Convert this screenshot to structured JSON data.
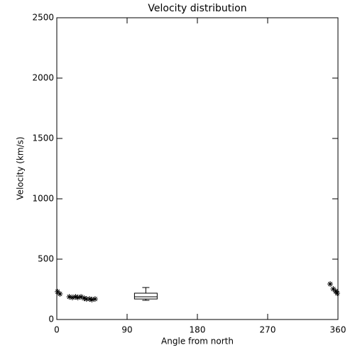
{
  "chart_data": {
    "type": "scatter",
    "title": "Velocity distribution",
    "x_label": "Angle from north",
    "y_label": "Velocity (km/s)",
    "xlim": [
      0,
      360
    ],
    "xticks": [
      0,
      90,
      180,
      270,
      360
    ],
    "ylim": [
      0,
      2500
    ],
    "yticks": [
      0,
      500,
      1000,
      1500,
      2000,
      2500
    ],
    "color": "#000000",
    "series": [
      {
        "x": [
          1,
          4,
          16,
          20,
          24,
          27,
          31,
          35,
          38,
          42,
          45,
          49,
          350,
          354,
          357,
          359
        ],
        "values": [
          230,
          212,
          188,
          182,
          188,
          182,
          188,
          176,
          170,
          170,
          165,
          170,
          294,
          253,
          235,
          218
        ]
      }
    ],
    "box": {
      "x": 114,
      "min": 159,
      "q1": 170,
      "median": 188,
      "q3": 218,
      "max": 265
    }
  }
}
